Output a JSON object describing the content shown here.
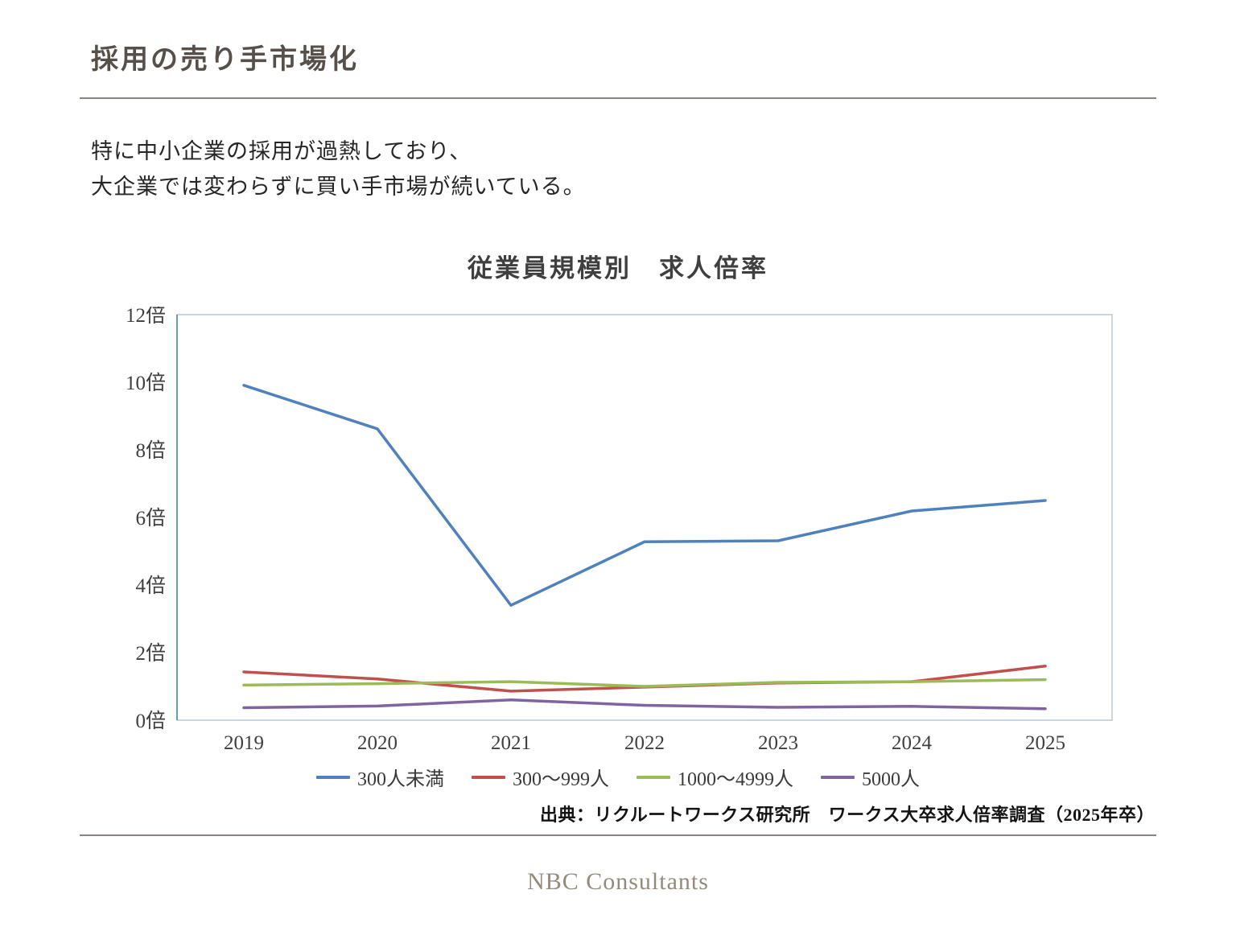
{
  "header": {
    "title": "採用の売り手市場化"
  },
  "body": {
    "line1": "特に中小企業の採用が過熱しており、",
    "line2": "大企業では変わらずに買い手市場が続いている。"
  },
  "chart_data": {
    "type": "line",
    "title": "従業員規模別　求人倍率",
    "categories": [
      "2019",
      "2020",
      "2021",
      "2022",
      "2023",
      "2024",
      "2025"
    ],
    "series": [
      {
        "name": "300人未満",
        "color": "#4f81bd",
        "values": [
          9.91,
          8.62,
          3.4,
          5.28,
          5.31,
          6.19,
          6.5
        ]
      },
      {
        "name": "300～999人",
        "color": "#c0504d",
        "values": [
          1.43,
          1.22,
          0.86,
          0.98,
          1.1,
          1.14,
          1.6
        ]
      },
      {
        "name": "1000～4999人",
        "color": "#9bbb59",
        "values": [
          1.04,
          1.08,
          1.14,
          1.0,
          1.12,
          1.14,
          1.2
        ]
      },
      {
        "name": "5000人",
        "color": "#8064a2",
        "values": [
          0.37,
          0.42,
          0.6,
          0.44,
          0.38,
          0.41,
          0.34
        ]
      }
    ],
    "ylim": [
      0,
      12
    ],
    "ytick_step": 2,
    "ytick_suffix": "倍",
    "xlabel": "",
    "ylabel": "",
    "grid": false,
    "legend_position": "bottom",
    "plot_border_color": "#b7c9d9",
    "axis_line_color": "#64a0b5",
    "tick_label_color": "#3f3f3f"
  },
  "footer": {
    "source": "出典：リクルートワークス研究所　ワークス大卒求人倍率調査（2025年卒）",
    "company": "NBC Consultants"
  }
}
